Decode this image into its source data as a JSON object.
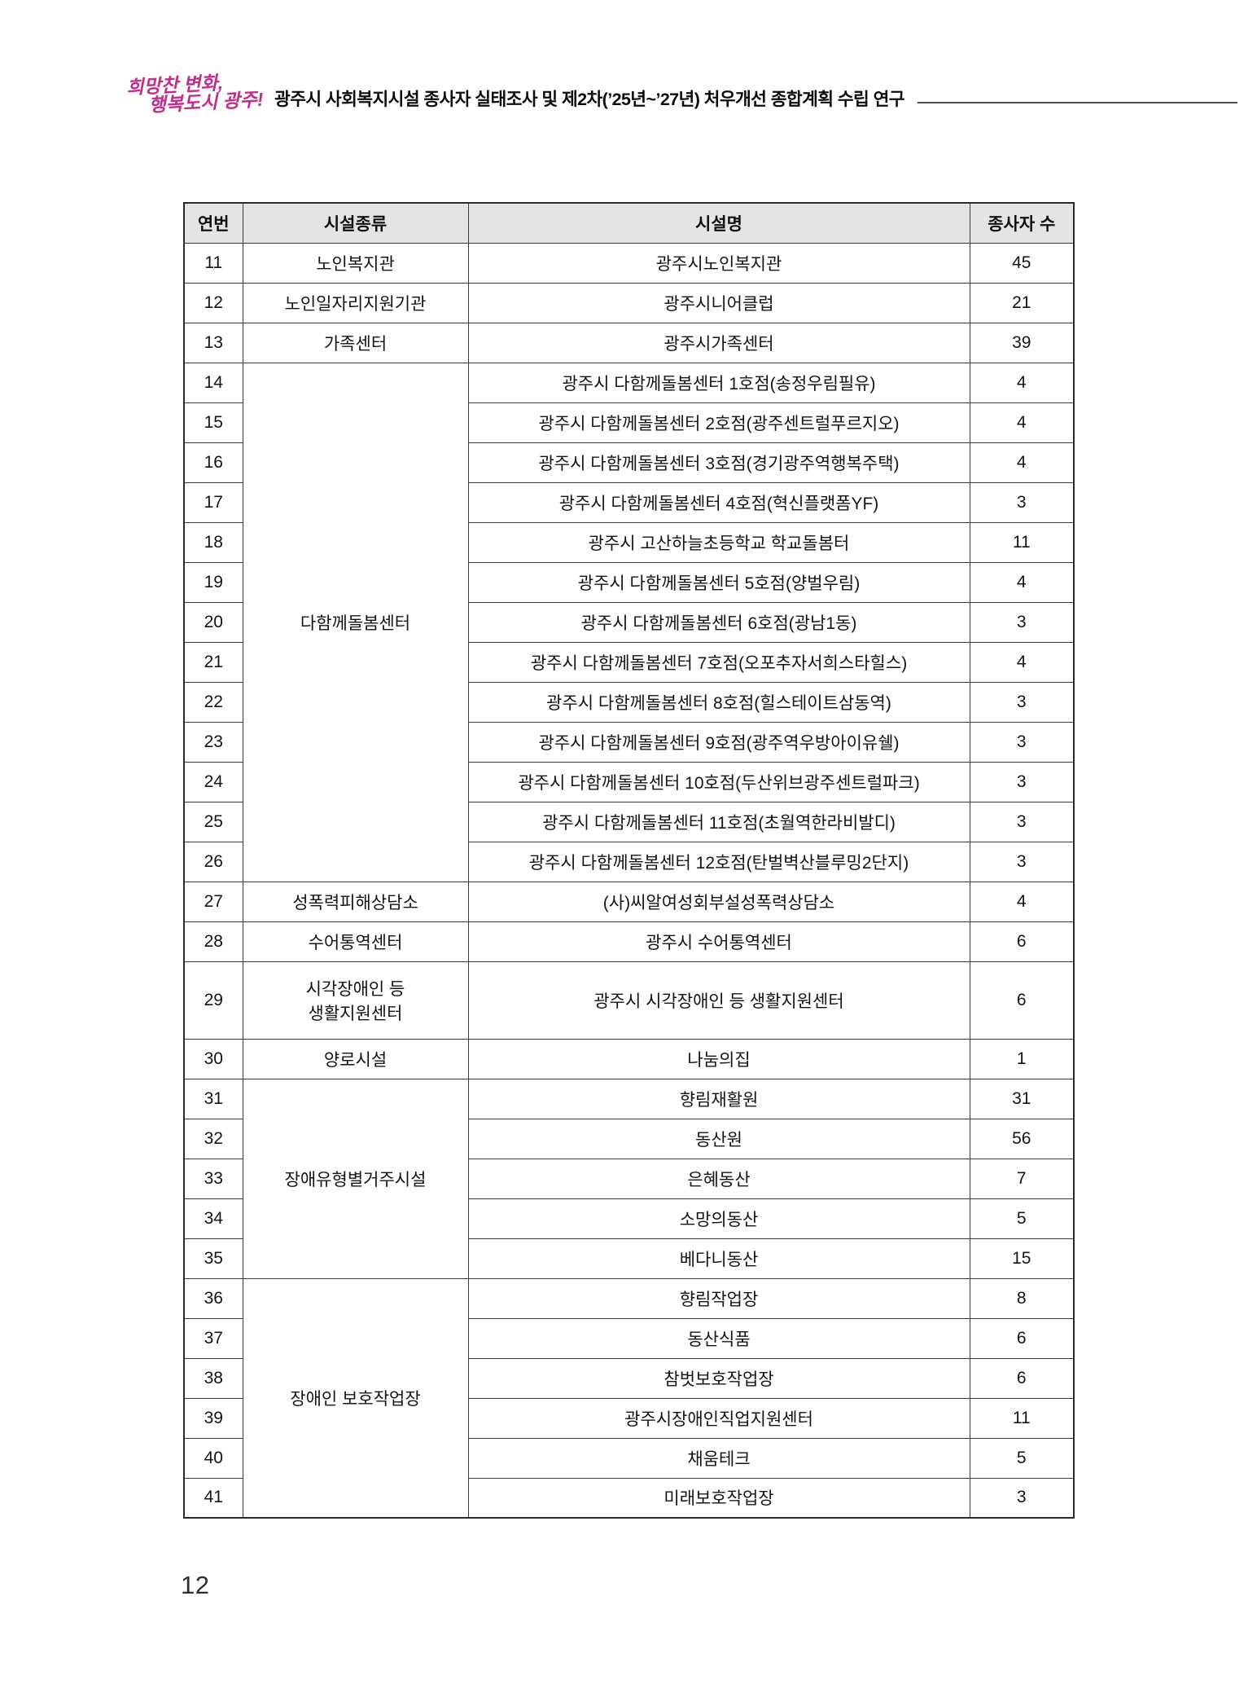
{
  "header": {
    "logo_line1": "희망찬 변화,",
    "logo_line2": "행복도시 광주!",
    "doc_title": "광주시 사회복지시설 종사자 실태조사 및 제2차(’25년~’27년) 처우개선 종합계획 수립 연구"
  },
  "page_number": "12",
  "colors": {
    "logo_magenta": "#c02d8a",
    "table_header_bg": "#e4e4e4"
  },
  "table": {
    "columns": [
      "연번",
      "시설종류",
      "시설명",
      "종사자 수"
    ],
    "groups": [
      {
        "category": "노인복지관",
        "rows": [
          {
            "no": "11",
            "name": "광주시노인복지관",
            "count": "45"
          }
        ]
      },
      {
        "category": "노인일자리지원기관",
        "rows": [
          {
            "no": "12",
            "name": "광주시니어클럽",
            "count": "21"
          }
        ]
      },
      {
        "category": "가족센터",
        "rows": [
          {
            "no": "13",
            "name": "광주시가족센터",
            "count": "39"
          }
        ]
      },
      {
        "category": "다함께돌봄센터",
        "rows": [
          {
            "no": "14",
            "name": "광주시 다함께돌봄센터 1호점(송정우림필유)",
            "count": "4"
          },
          {
            "no": "15",
            "name": "광주시 다함께돌봄센터 2호점(광주센트럴푸르지오)",
            "count": "4"
          },
          {
            "no": "16",
            "name": "광주시 다함께돌봄센터 3호점(경기광주역행복주택)",
            "count": "4"
          },
          {
            "no": "17",
            "name": "광주시 다함께돌봄센터 4호점(혁신플랫폼YF)",
            "count": "3"
          },
          {
            "no": "18",
            "name": "광주시 고산하늘초등학교 학교돌봄터",
            "count": "11"
          },
          {
            "no": "19",
            "name": "광주시 다함께돌봄센터 5호점(양벌우림)",
            "count": "4"
          },
          {
            "no": "20",
            "name": "광주시 다함께돌봄센터 6호점(광남1동)",
            "count": "3"
          },
          {
            "no": "21",
            "name": "광주시 다함께돌봄센터 7호점(오포추자서희스타힐스)",
            "count": "4"
          },
          {
            "no": "22",
            "name": "광주시 다함께돌봄센터 8호점(힐스테이트삼동역)",
            "count": "3"
          },
          {
            "no": "23",
            "name": "광주시 다함께돌봄센터 9호점(광주역우방아이유쉘)",
            "count": "3"
          },
          {
            "no": "24",
            "name": "광주시 다함께돌봄센터 10호점(두산위브광주센트럴파크)",
            "count": "3"
          },
          {
            "no": "25",
            "name": "광주시 다함께돌봄센터 11호점(초월역한라비발디)",
            "count": "3"
          },
          {
            "no": "26",
            "name": "광주시 다함께돌봄센터 12호점(탄벌벽산블루밍2단지)",
            "count": "3"
          }
        ]
      },
      {
        "category": "성폭력피해상담소",
        "rows": [
          {
            "no": "27",
            "name": "(사)씨알여성회부설성폭력상담소",
            "count": "4"
          }
        ]
      },
      {
        "category": "수어통역센터",
        "rows": [
          {
            "no": "28",
            "name": "광주시 수어통역센터",
            "count": "6"
          }
        ]
      },
      {
        "category": "시각장애인 등\n생활지원센터",
        "tall": true,
        "rows": [
          {
            "no": "29",
            "name": "광주시 시각장애인 등 생활지원센터",
            "count": "6"
          }
        ]
      },
      {
        "category": "양로시설",
        "rows": [
          {
            "no": "30",
            "name": "나눔의집",
            "count": "1"
          }
        ]
      },
      {
        "category": "장애유형별거주시설",
        "rows": [
          {
            "no": "31",
            "name": "향림재활원",
            "count": "31"
          },
          {
            "no": "32",
            "name": "동산원",
            "count": "56"
          },
          {
            "no": "33",
            "name": "은혜동산",
            "count": "7"
          },
          {
            "no": "34",
            "name": "소망의동산",
            "count": "5"
          },
          {
            "no": "35",
            "name": "베다니동산",
            "count": "15"
          }
        ]
      },
      {
        "category": "장애인 보호작업장",
        "rows": [
          {
            "no": "36",
            "name": "향림작업장",
            "count": "8"
          },
          {
            "no": "37",
            "name": "동산식품",
            "count": "6"
          },
          {
            "no": "38",
            "name": "참벗보호작업장",
            "count": "6"
          },
          {
            "no": "39",
            "name": "광주시장애인직업지원센터",
            "count": "11"
          },
          {
            "no": "40",
            "name": "채움테크",
            "count": "5"
          },
          {
            "no": "41",
            "name": "미래보호작업장",
            "count": "3"
          }
        ]
      }
    ]
  }
}
